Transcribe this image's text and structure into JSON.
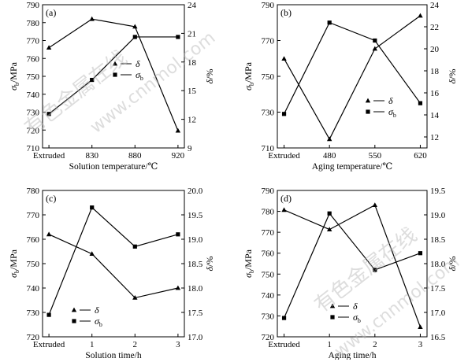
{
  "watermark": {
    "text": "有色金属在线",
    "url": "www.cnnmol.com"
  },
  "colors": {
    "line": "#000000",
    "axis": "#000000"
  },
  "chart_data": [
    {
      "type": "line",
      "panel_label": "(a)",
      "xlabel": "Solution temperature/℃",
      "ylabel_left": "σb/MPa",
      "ylabel_right": "δ/%",
      "categories": [
        "Extruded",
        "830",
        "880",
        "920"
      ],
      "ylim_left": [
        710,
        790
      ],
      "yticks_left": [
        "710",
        "720",
        "730",
        "740",
        "750",
        "760",
        "770",
        "780",
        "790"
      ],
      "ylim_right": [
        9,
        24
      ],
      "yticks_right": [
        "9",
        "12",
        "15",
        "18",
        "21",
        "24"
      ],
      "legend_placement": "center-right",
      "series": [
        {
          "name": "δ",
          "marker": "triangle",
          "axis": "right",
          "values": [
            19.5,
            22.5,
            21.7,
            10.8
          ]
        },
        {
          "name": "σb",
          "marker": "square",
          "axis": "left",
          "values": [
            729,
            748,
            772,
            772
          ]
        }
      ]
    },
    {
      "type": "line",
      "panel_label": "(b)",
      "xlabel": "Aging temperature/℃",
      "ylabel_left": "σb/MPa",
      "ylabel_right": "δ/%",
      "categories": [
        "Extruded",
        "480",
        "550",
        "620"
      ],
      "ylim_left": [
        710,
        790
      ],
      "yticks_left": [
        "710",
        "730",
        "750",
        "770",
        "790"
      ],
      "ylim_right": [
        11,
        24
      ],
      "yticks_right": [
        "12",
        "14",
        "16",
        "18",
        "20",
        "22",
        "24"
      ],
      "legend_placement": "bottom-right",
      "series": [
        {
          "name": "δ",
          "marker": "triangle",
          "axis": "right",
          "values": [
            19.1,
            11.8,
            20.0,
            23.0
          ]
        },
        {
          "name": "σb",
          "marker": "square",
          "axis": "left",
          "values": [
            729,
            780,
            770,
            735
          ]
        }
      ]
    },
    {
      "type": "line",
      "panel_label": "(c)",
      "xlabel": "Solution time/h",
      "ylabel_left": "σb/MPa",
      "ylabel_right": "δ/%",
      "categories": [
        "Extruded",
        "1",
        "2",
        "3"
      ],
      "ylim_left": [
        720,
        780
      ],
      "yticks_left": [
        "720",
        "730",
        "740",
        "750",
        "760",
        "770",
        "780"
      ],
      "ylim_right": [
        17.0,
        20.0
      ],
      "yticks_right": [
        "17.0",
        "17.5",
        "18.0",
        "18.5",
        "19.0",
        "19.5",
        "20.0"
      ],
      "legend_placement": "bottom-left",
      "series": [
        {
          "name": "δ",
          "marker": "triangle",
          "axis": "right",
          "values": [
            19.1,
            18.7,
            17.8,
            18.0
          ]
        },
        {
          "name": "σb",
          "marker": "square",
          "axis": "left",
          "values": [
            729,
            773,
            757,
            762
          ]
        }
      ]
    },
    {
      "type": "line",
      "panel_label": "(d)",
      "xlabel": "Aging time/h",
      "ylabel_left": "σb/MPa",
      "ylabel_right": "δ/%",
      "categories": [
        "Extruded",
        "1",
        "2",
        "3"
      ],
      "ylim_left": [
        720,
        790
      ],
      "yticks_left": [
        "720",
        "730",
        "740",
        "750",
        "760",
        "770",
        "780",
        "790"
      ],
      "ylim_right": [
        16.5,
        19.5
      ],
      "yticks_right": [
        "16.5",
        "17.0",
        "17.5",
        "18.0",
        "18.5",
        "19.0",
        "19.5"
      ],
      "legend_placement": "bottom-center",
      "series": [
        {
          "name": "δ",
          "marker": "triangle",
          "axis": "right",
          "values": [
            19.1,
            18.7,
            19.2,
            16.7
          ]
        },
        {
          "name": "σb",
          "marker": "square",
          "axis": "left",
          "values": [
            729,
            779,
            752,
            760
          ]
        }
      ]
    }
  ]
}
